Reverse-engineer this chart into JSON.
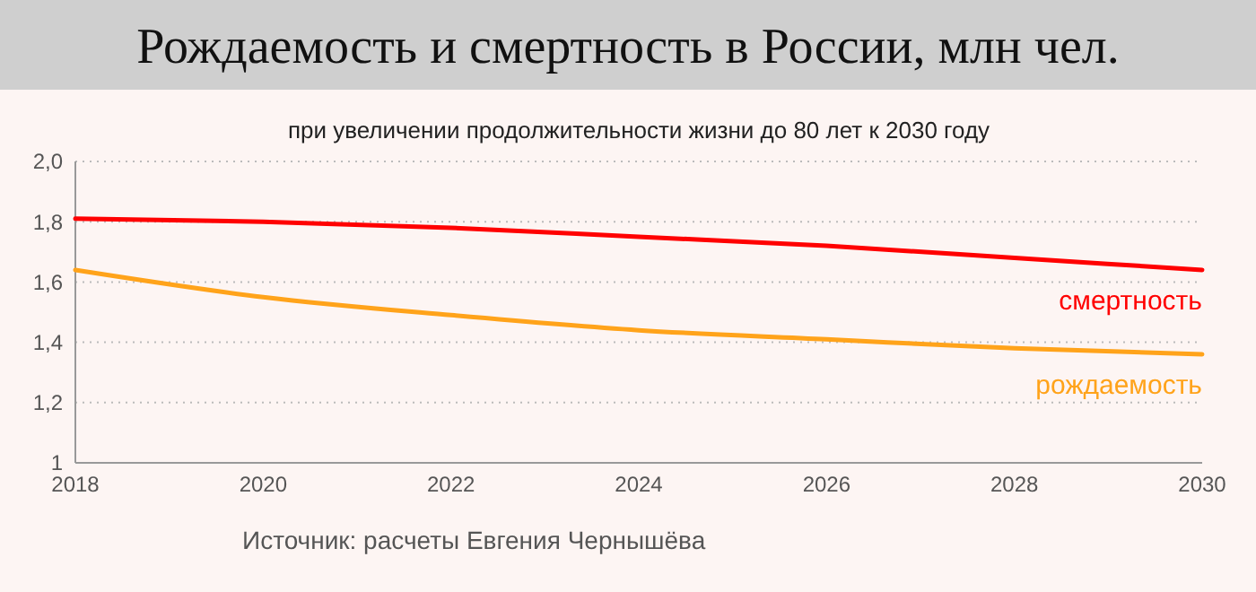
{
  "chart_data": {
    "type": "line",
    "title": "Рождаемость и смертность в России, млн чел.",
    "subtitle": "при увеличении продолжительности жизни до 80 лет к 2030 году",
    "x": [
      2018,
      2020,
      2022,
      2024,
      2026,
      2028,
      2030
    ],
    "series": [
      {
        "name": "смертность",
        "color": "#ff0000",
        "values": [
          1.81,
          1.8,
          1.78,
          1.75,
          1.72,
          1.68,
          1.64
        ]
      },
      {
        "name": "рождаемость",
        "color": "#ffa31a",
        "values": [
          1.64,
          1.55,
          1.49,
          1.44,
          1.41,
          1.38,
          1.36
        ]
      }
    ],
    "xlim": [
      2018,
      2030
    ],
    "xticks": [
      2018,
      2020,
      2022,
      2024,
      2026,
      2028,
      2030
    ],
    "ylim": [
      1,
      2
    ],
    "yticks": [
      {
        "value": 1,
        "label": "1"
      },
      {
        "value": 1.2,
        "label": "1,2"
      },
      {
        "value": 1.4,
        "label": "1,4"
      },
      {
        "value": 1.6,
        "label": "1,6"
      },
      {
        "value": 1.8,
        "label": "1,8"
      },
      {
        "value": 2,
        "label": "2,0"
      }
    ],
    "grid": "y",
    "marker": "none",
    "line_style": "solid",
    "annotations": [
      "Источник: расчеты Евгения Чернышёва"
    ]
  }
}
